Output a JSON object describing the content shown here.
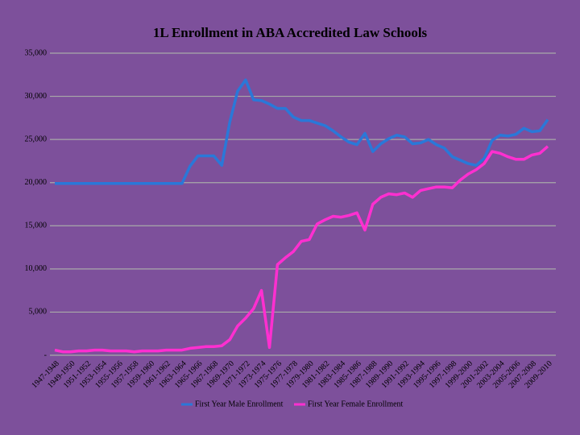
{
  "chart_data": {
    "type": "line",
    "title": "1L Enrollment in ABA Accredited Law Schools",
    "categories": [
      "1947-1948",
      null,
      "1949-1950",
      null,
      "1951-1952",
      null,
      "1953-1954",
      null,
      "1955-1956",
      null,
      "1957-1958",
      null,
      "1959-1960",
      null,
      "1961-1962",
      null,
      "1963-1964",
      null,
      "1965-1966",
      null,
      "1967-1968",
      null,
      "1969-1970",
      null,
      "1971-1972",
      null,
      "1973-1974",
      null,
      "1975-1976",
      null,
      "1977-1978",
      null,
      "1979-1980",
      null,
      "1981-1982",
      null,
      "1983-1984",
      null,
      "1985-1986",
      null,
      "1987-1988",
      null,
      "1989-1990",
      null,
      "1991-1992",
      null,
      "1993-1994",
      null,
      "1995-1996",
      null,
      "1997-1998",
      null,
      "1999-2000",
      null,
      "2001-2002",
      null,
      "2003-2004",
      null,
      "2005-2006",
      null,
      "2007-2008",
      null,
      "2009-2010"
    ],
    "series": [
      {
        "name": "First Year Male Enrollment",
        "color": "#2a78d8",
        "values": [
          19900,
          19900,
          19900,
          19900,
          19900,
          19900,
          19900,
          19900,
          19900,
          19900,
          19900,
          19900,
          19900,
          19900,
          19900,
          19900,
          19900,
          21900,
          23100,
          23100,
          23100,
          22000,
          27000,
          30600,
          31900,
          29600,
          29500,
          29100,
          28600,
          28600,
          27600,
          27200,
          27200,
          26900,
          26600,
          26000,
          25300,
          24700,
          24400,
          25700,
          23600,
          24500,
          25100,
          25500,
          25300,
          24500,
          24600,
          25000,
          24400,
          24000,
          23000,
          22600,
          22200,
          22000,
          22800,
          24900,
          25500,
          25400,
          25600,
          26300,
          25900,
          26000,
          27300
        ]
      },
      {
        "name": "First Year Female Enrollment",
        "color": "#ff2fd0",
        "values": [
          600,
          400,
          400,
          500,
          500,
          600,
          600,
          500,
          500,
          500,
          400,
          500,
          500,
          500,
          600,
          600,
          600,
          800,
          900,
          1000,
          1000,
          1100,
          1800,
          3400,
          4300,
          5400,
          7500,
          900,
          10500,
          11300,
          12000,
          13200,
          13400,
          15200,
          15700,
          16100,
          16000,
          16200,
          16500,
          14500,
          17500,
          18300,
          18700,
          18600,
          18800,
          18300,
          19100,
          19300,
          19500,
          19500,
          19400,
          20300,
          21000,
          21500,
          22200,
          23600,
          23400,
          23000,
          22700,
          22700,
          23200,
          23400,
          24200
        ]
      }
    ],
    "ylim": [
      0,
      35000
    ],
    "yticks": [
      {
        "value": 0,
        "label": "-"
      },
      {
        "value": 5000,
        "label": "5,000"
      },
      {
        "value": 10000,
        "label": "10,000"
      },
      {
        "value": 15000,
        "label": "15,000"
      },
      {
        "value": 20000,
        "label": "20,000"
      },
      {
        "value": 25000,
        "label": "25,000"
      },
      {
        "value": 30000,
        "label": "30,000"
      },
      {
        "value": 35000,
        "label": "35,000"
      }
    ],
    "grid": true,
    "legend": "bottom"
  }
}
